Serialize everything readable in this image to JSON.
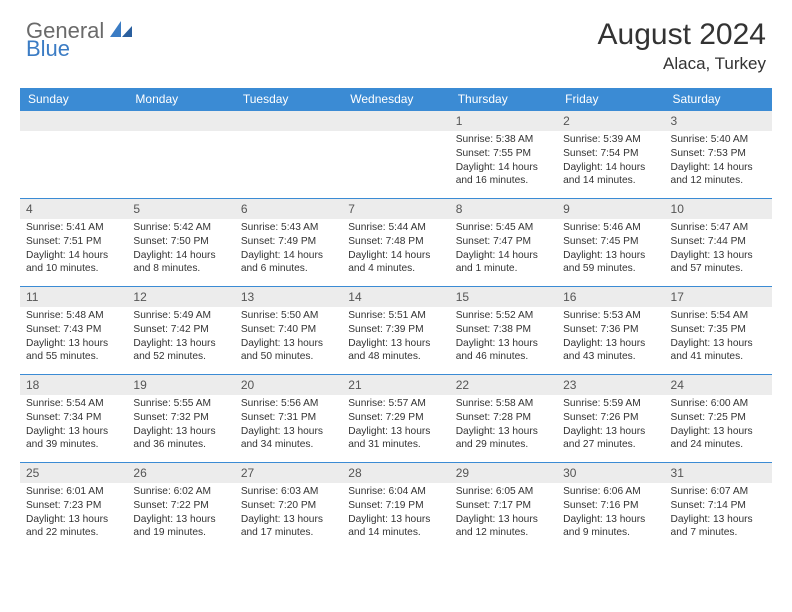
{
  "brand": {
    "general": "General",
    "blue": "Blue"
  },
  "title": "August 2024",
  "location": "Alaca, Turkey",
  "colors": {
    "header_bg": "#3b8bd4",
    "stripe_bg": "#ececec",
    "accent": "#3b7cc4",
    "text": "#333333",
    "logo_gray": "#6a6a6a"
  },
  "weekdays": [
    "Sunday",
    "Monday",
    "Tuesday",
    "Wednesday",
    "Thursday",
    "Friday",
    "Saturday"
  ],
  "weeks": [
    [
      null,
      null,
      null,
      null,
      {
        "n": "1",
        "sr": "5:38 AM",
        "ss": "7:55 PM",
        "dl": "14 hours and 16 minutes."
      },
      {
        "n": "2",
        "sr": "5:39 AM",
        "ss": "7:54 PM",
        "dl": "14 hours and 14 minutes."
      },
      {
        "n": "3",
        "sr": "5:40 AM",
        "ss": "7:53 PM",
        "dl": "14 hours and 12 minutes."
      }
    ],
    [
      {
        "n": "4",
        "sr": "5:41 AM",
        "ss": "7:51 PM",
        "dl": "14 hours and 10 minutes."
      },
      {
        "n": "5",
        "sr": "5:42 AM",
        "ss": "7:50 PM",
        "dl": "14 hours and 8 minutes."
      },
      {
        "n": "6",
        "sr": "5:43 AM",
        "ss": "7:49 PM",
        "dl": "14 hours and 6 minutes."
      },
      {
        "n": "7",
        "sr": "5:44 AM",
        "ss": "7:48 PM",
        "dl": "14 hours and 4 minutes."
      },
      {
        "n": "8",
        "sr": "5:45 AM",
        "ss": "7:47 PM",
        "dl": "14 hours and 1 minute."
      },
      {
        "n": "9",
        "sr": "5:46 AM",
        "ss": "7:45 PM",
        "dl": "13 hours and 59 minutes."
      },
      {
        "n": "10",
        "sr": "5:47 AM",
        "ss": "7:44 PM",
        "dl": "13 hours and 57 minutes."
      }
    ],
    [
      {
        "n": "11",
        "sr": "5:48 AM",
        "ss": "7:43 PM",
        "dl": "13 hours and 55 minutes."
      },
      {
        "n": "12",
        "sr": "5:49 AM",
        "ss": "7:42 PM",
        "dl": "13 hours and 52 minutes."
      },
      {
        "n": "13",
        "sr": "5:50 AM",
        "ss": "7:40 PM",
        "dl": "13 hours and 50 minutes."
      },
      {
        "n": "14",
        "sr": "5:51 AM",
        "ss": "7:39 PM",
        "dl": "13 hours and 48 minutes."
      },
      {
        "n": "15",
        "sr": "5:52 AM",
        "ss": "7:38 PM",
        "dl": "13 hours and 46 minutes."
      },
      {
        "n": "16",
        "sr": "5:53 AM",
        "ss": "7:36 PM",
        "dl": "13 hours and 43 minutes."
      },
      {
        "n": "17",
        "sr": "5:54 AM",
        "ss": "7:35 PM",
        "dl": "13 hours and 41 minutes."
      }
    ],
    [
      {
        "n": "18",
        "sr": "5:54 AM",
        "ss": "7:34 PM",
        "dl": "13 hours and 39 minutes."
      },
      {
        "n": "19",
        "sr": "5:55 AM",
        "ss": "7:32 PM",
        "dl": "13 hours and 36 minutes."
      },
      {
        "n": "20",
        "sr": "5:56 AM",
        "ss": "7:31 PM",
        "dl": "13 hours and 34 minutes."
      },
      {
        "n": "21",
        "sr": "5:57 AM",
        "ss": "7:29 PM",
        "dl": "13 hours and 31 minutes."
      },
      {
        "n": "22",
        "sr": "5:58 AM",
        "ss": "7:28 PM",
        "dl": "13 hours and 29 minutes."
      },
      {
        "n": "23",
        "sr": "5:59 AM",
        "ss": "7:26 PM",
        "dl": "13 hours and 27 minutes."
      },
      {
        "n": "24",
        "sr": "6:00 AM",
        "ss": "7:25 PM",
        "dl": "13 hours and 24 minutes."
      }
    ],
    [
      {
        "n": "25",
        "sr": "6:01 AM",
        "ss": "7:23 PM",
        "dl": "13 hours and 22 minutes."
      },
      {
        "n": "26",
        "sr": "6:02 AM",
        "ss": "7:22 PM",
        "dl": "13 hours and 19 minutes."
      },
      {
        "n": "27",
        "sr": "6:03 AM",
        "ss": "7:20 PM",
        "dl": "13 hours and 17 minutes."
      },
      {
        "n": "28",
        "sr": "6:04 AM",
        "ss": "7:19 PM",
        "dl": "13 hours and 14 minutes."
      },
      {
        "n": "29",
        "sr": "6:05 AM",
        "ss": "7:17 PM",
        "dl": "13 hours and 12 minutes."
      },
      {
        "n": "30",
        "sr": "6:06 AM",
        "ss": "7:16 PM",
        "dl": "13 hours and 9 minutes."
      },
      {
        "n": "31",
        "sr": "6:07 AM",
        "ss": "7:14 PM",
        "dl": "13 hours and 7 minutes."
      }
    ]
  ],
  "labels": {
    "sunrise": "Sunrise:",
    "sunset": "Sunset:",
    "daylight": "Daylight:"
  }
}
